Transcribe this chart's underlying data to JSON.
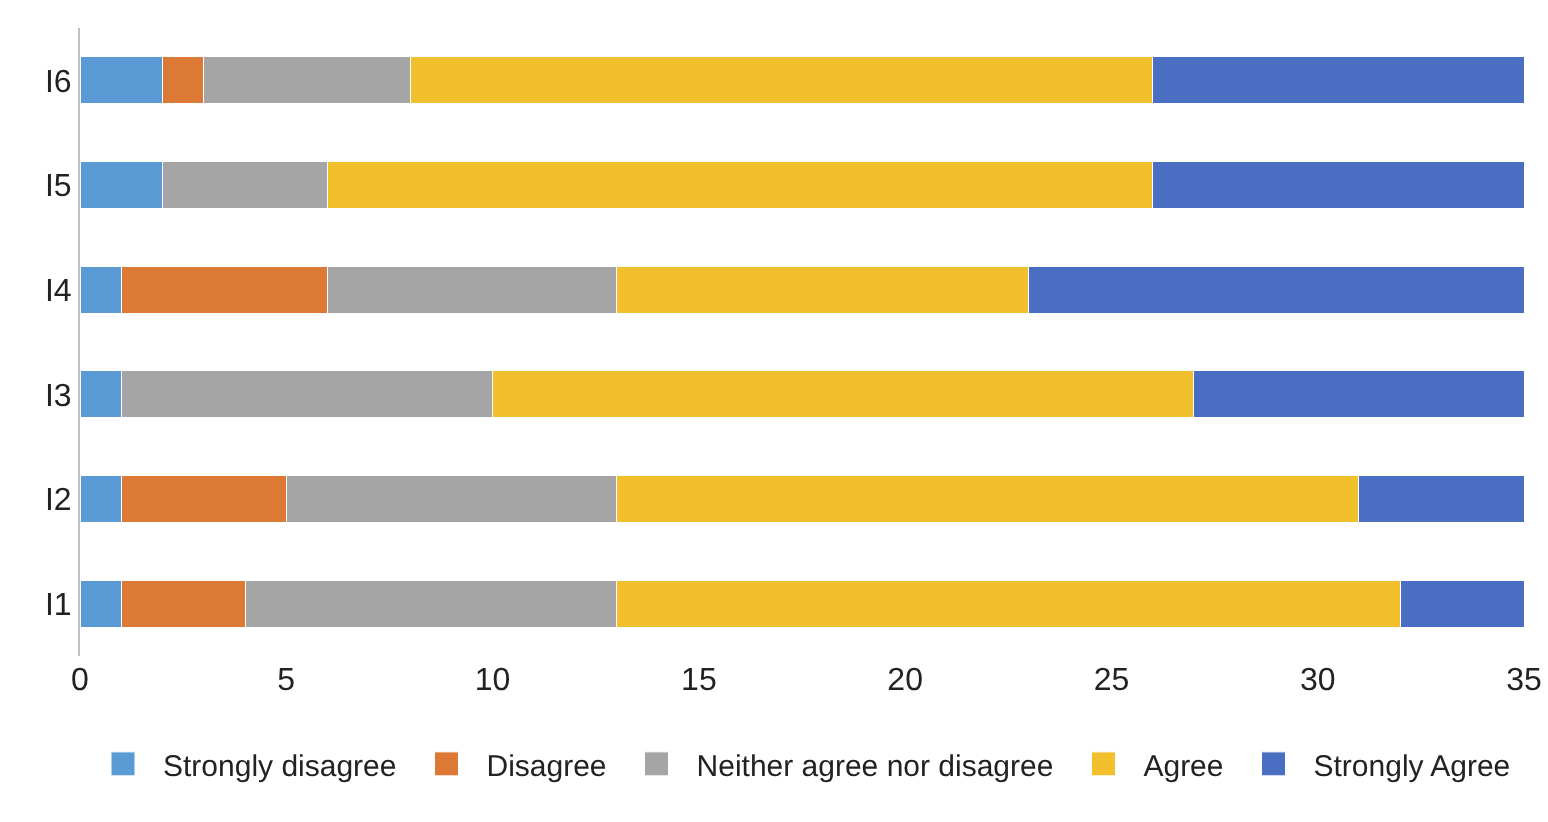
{
  "chart_data": {
    "type": "bar",
    "orientation": "horizontal",
    "stacked": true,
    "categories": [
      "I6",
      "I5",
      "I4",
      "I3",
      "I2",
      "I1"
    ],
    "series": [
      {
        "name": "Strongly disagree",
        "color": "#5b9bd5",
        "values": [
          2,
          2,
          1,
          1,
          1,
          1
        ]
      },
      {
        "name": "Disagree",
        "color": "#dc7a35",
        "values": [
          1,
          0,
          5,
          0,
          4,
          3
        ]
      },
      {
        "name": "Neither agree nor disagree",
        "color": "#a5a5a5",
        "values": [
          5,
          4,
          7,
          9,
          8,
          9
        ]
      },
      {
        "name": "Agree",
        "color": "#f2c02c",
        "values": [
          18,
          20,
          10,
          17,
          18,
          19
        ]
      },
      {
        "name": "Strongly Agree",
        "color": "#4a6fc2",
        "values": [
          9,
          9,
          12,
          8,
          4,
          3
        ]
      }
    ],
    "xlim": [
      0,
      35
    ],
    "xticks": [
      0,
      5,
      10,
      15,
      20,
      25,
      30,
      35
    ],
    "grid": false,
    "legend": "bottom"
  }
}
